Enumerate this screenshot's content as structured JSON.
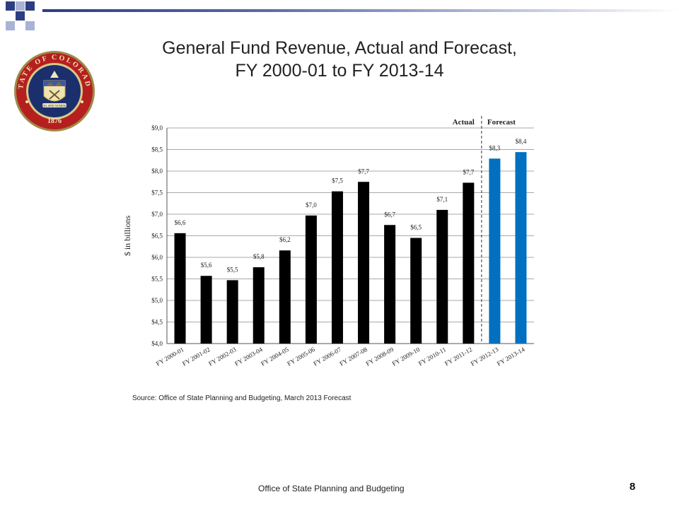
{
  "slide": {
    "title_line1": "General Fund Revenue, Actual and Forecast,",
    "title_line2": "FY 2000-01 to FY 2013-14",
    "source": "Source: Office of State Planning and Budgeting, March 2013 Forecast",
    "footer": "Office of State Planning and Budgeting",
    "page_number": "8",
    "seal_text_top": "STATE OF COLORADO",
    "seal_year": "1876",
    "seal_motto": "NIL SINE NUMINE"
  },
  "colors": {
    "actual_bar": "#000000",
    "forecast_bar": "#0070C0",
    "seal_ring": "#b5201e",
    "seal_inner": "#1c2f6d",
    "topbar_dark": "#2c3e82",
    "topbar_light": "#a9b3d6"
  },
  "chart_data": {
    "type": "bar",
    "ylabel": "$ in billions",
    "ylim": [
      4.0,
      9.0
    ],
    "ytick_step": 0.5,
    "ytick_labels": [
      "$4,0",
      "$4,5",
      "$5,0",
      "$5,5",
      "$6,0",
      "$6,5",
      "$7,0",
      "$7,5",
      "$8,0",
      "$8,5",
      "$9,0"
    ],
    "categories": [
      "FY 2000-01",
      "FY 2001-02",
      "FY 2002-03",
      "FY 2003-04",
      "FY 2004-05",
      "FY 2005-06",
      "FY 2006-07",
      "FY 2007-08",
      "FY 2008-09",
      "FY 2009-10",
      "FY 2010-11",
      "FY 2011-12",
      "FY 2012-13",
      "FY 2013-14"
    ],
    "values": [
      6.56,
      5.57,
      5.47,
      5.77,
      6.16,
      6.97,
      7.53,
      7.75,
      6.75,
      6.45,
      7.1,
      7.73,
      8.29,
      8.44
    ],
    "data_labels": [
      "$6,6",
      "$5,6",
      "$5,5",
      "$5,8",
      "$6,2",
      "$7,0",
      "$7,5",
      "$7,7",
      "$6,7",
      "$6,5",
      "$7,1",
      "$7,7",
      "$8,3",
      "$8,4"
    ],
    "forecast_start_index": 12,
    "region_labels": {
      "actual": "Actual",
      "forecast": "Forecast"
    },
    "grid": true,
    "legend": "none"
  }
}
